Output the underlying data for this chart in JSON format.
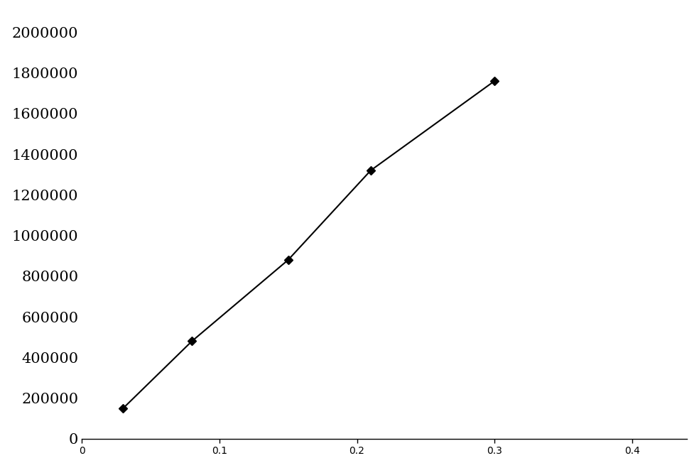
{
  "x": [
    0.03,
    0.08,
    0.15,
    0.21,
    0.3
  ],
  "y": [
    150000,
    480000,
    880000,
    1320000,
    1760000
  ],
  "line_color": "#000000",
  "marker": "D",
  "marker_size": 6,
  "marker_color": "#000000",
  "line_width": 1.5,
  "xlim": [
    0,
    0.44
  ],
  "ylim": [
    0,
    2100000
  ],
  "xticks": [
    0,
    0.1,
    0.2,
    0.3,
    0.4
  ],
  "xticklabels": [
    "0",
    "0.1",
    "0.2",
    "0.3",
    "0.4"
  ],
  "yticks": [
    0,
    200000,
    400000,
    600000,
    800000,
    1000000,
    1200000,
    1400000,
    1600000,
    1800000,
    2000000
  ],
  "yticklabels": [
    "0",
    "200000",
    "400000",
    "600000",
    "800000",
    "1000000",
    "1200000",
    "1400000",
    "1600000",
    "1800000",
    "2000000"
  ],
  "tick_fontsize": 15,
  "background_color": "#ffffff",
  "plot_bg_color": "#ffffff"
}
